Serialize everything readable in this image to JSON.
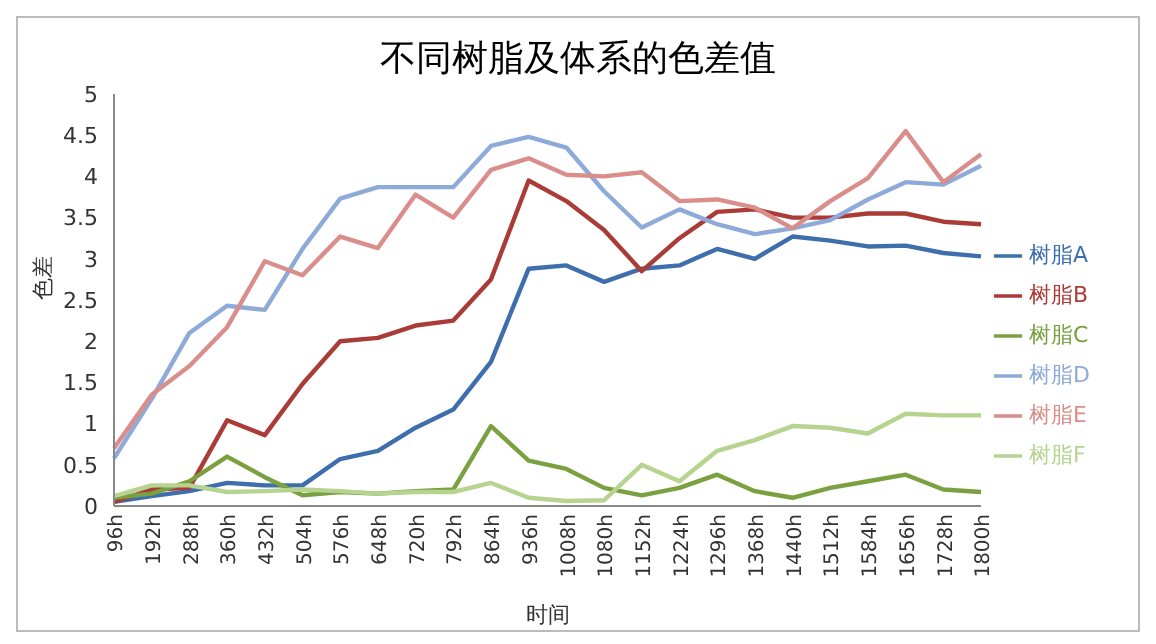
{
  "chart_data": {
    "type": "line",
    "title": "不同树脂及体系的色差值",
    "xlabel": "时间",
    "ylabel": "色差",
    "categories": [
      "96h",
      "192h",
      "288h",
      "360h",
      "432h",
      "504h",
      "576h",
      "648h",
      "720h",
      "792h",
      "864h",
      "936h",
      "1008h",
      "1080h",
      "1152h",
      "1224h",
      "1296h",
      "1368h",
      "1440h",
      "1512h",
      "1584h",
      "1656h",
      "1728h",
      "1800h"
    ],
    "series": [
      {
        "name": "树脂A",
        "color": "#3f6ead",
        "values": [
          0.05,
          0.12,
          0.18,
          0.28,
          0.25,
          0.25,
          0.57,
          0.67,
          0.95,
          1.17,
          1.75,
          2.88,
          2.92,
          2.72,
          2.88,
          2.92,
          3.12,
          3.0,
          3.27,
          3.22,
          3.15,
          3.16,
          3.07,
          3.03
        ]
      },
      {
        "name": "树脂B",
        "color": "#ab3b37",
        "values": [
          0.05,
          0.2,
          0.22,
          1.04,
          0.86,
          1.48,
          2.0,
          2.04,
          2.19,
          2.25,
          2.75,
          3.95,
          3.7,
          3.35,
          2.85,
          3.25,
          3.57,
          3.6,
          3.5,
          3.5,
          3.55,
          3.55,
          3.45,
          3.42
        ]
      },
      {
        "name": "树脂C",
        "color": "#7aa03f",
        "values": [
          0.1,
          0.15,
          0.3,
          0.6,
          0.35,
          0.13,
          0.17,
          0.15,
          0.18,
          0.2,
          0.97,
          0.55,
          0.45,
          0.22,
          0.13,
          0.22,
          0.38,
          0.18,
          0.1,
          0.22,
          0.3,
          0.38,
          0.2,
          0.17
        ]
      },
      {
        "name": "树脂D",
        "color": "#8eaad8",
        "values": [
          0.58,
          1.3,
          2.1,
          2.43,
          2.38,
          3.12,
          3.73,
          3.87,
          3.87,
          3.87,
          4.37,
          4.48,
          4.35,
          3.82,
          3.38,
          3.6,
          3.42,
          3.3,
          3.37,
          3.47,
          3.72,
          3.93,
          3.9,
          4.13
        ]
      },
      {
        "name": "树脂E",
        "color": "#d98e8c",
        "values": [
          0.7,
          1.35,
          1.7,
          2.17,
          2.97,
          2.8,
          3.27,
          3.13,
          3.78,
          3.5,
          4.08,
          4.22,
          4.02,
          4.0,
          4.05,
          3.7,
          3.72,
          3.62,
          3.37,
          3.7,
          3.98,
          4.55,
          3.93,
          4.27
        ]
      },
      {
        "name": "树脂F",
        "color": "#b6d38f",
        "values": [
          0.12,
          0.25,
          0.25,
          0.17,
          0.18,
          0.2,
          0.18,
          0.15,
          0.17,
          0.17,
          0.28,
          0.1,
          0.06,
          0.07,
          0.5,
          0.3,
          0.67,
          0.8,
          0.97,
          0.95,
          0.88,
          1.12,
          1.1,
          1.1
        ]
      }
    ],
    "ylim": [
      0,
      5
    ],
    "yticks": [
      0,
      0.5,
      1,
      1.5,
      2,
      2.5,
      3,
      3.5,
      4,
      4.5,
      5
    ],
    "legend": "right",
    "marker": "none",
    "line_style": "solid"
  }
}
